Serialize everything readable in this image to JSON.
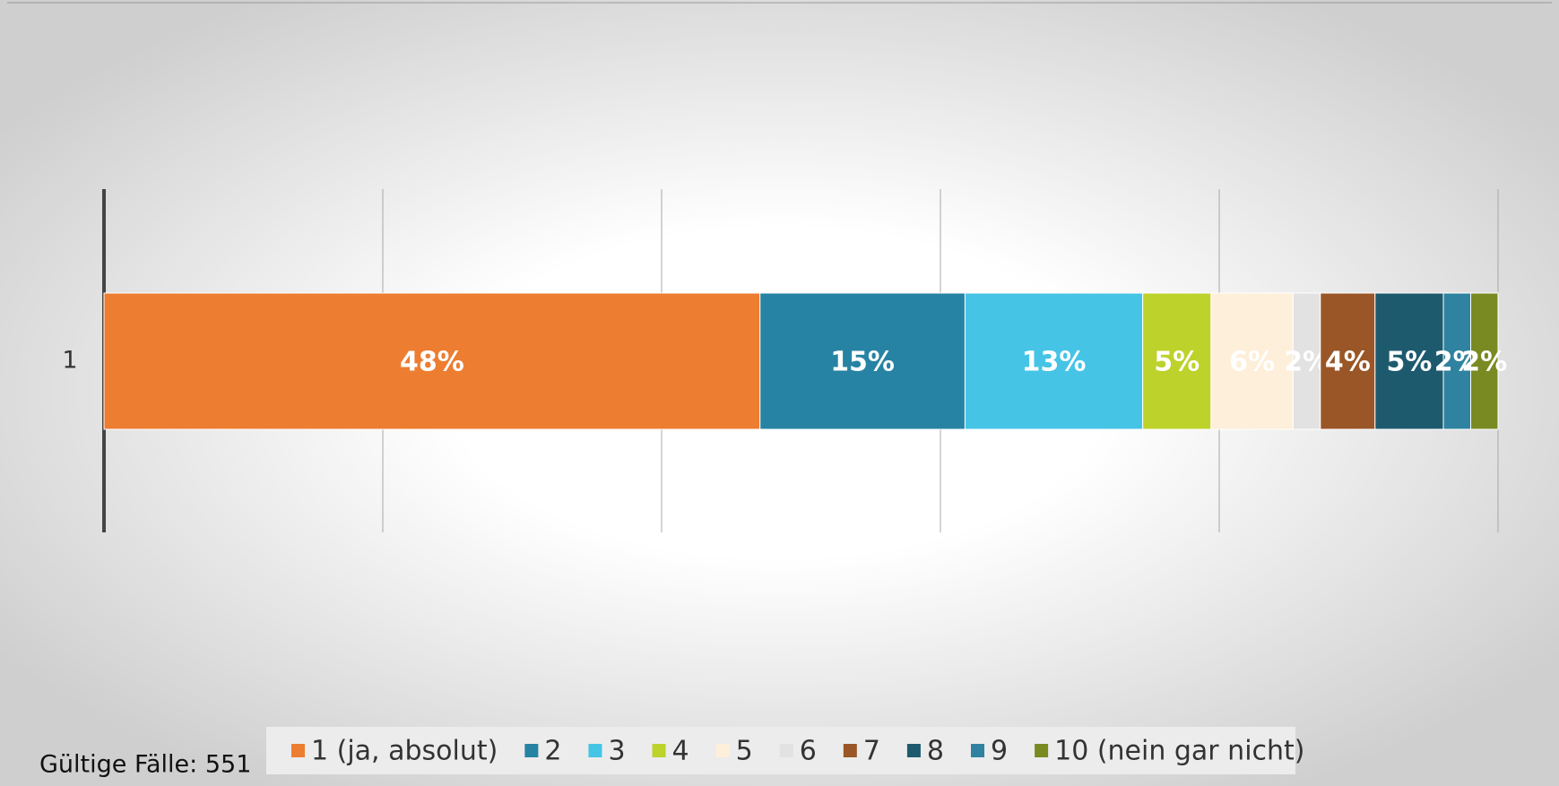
{
  "chart_data": {
    "type": "bar",
    "categories": [
      "1"
    ],
    "series": [
      {
        "name": "1 (ja, absolut)",
        "color": "#ed7d31",
        "values": [
          48
        ]
      },
      {
        "name": "2",
        "color": "#2683a3",
        "values": [
          15
        ]
      },
      {
        "name": "3",
        "color": "#45c4e6",
        "values": [
          13
        ]
      },
      {
        "name": "4",
        "color": "#bdd22a",
        "values": [
          5
        ]
      },
      {
        "name": "5",
        "color": "#fdefd9",
        "values": [
          6
        ]
      },
      {
        "name": "6",
        "color": "#e2e2e2",
        "values": [
          2
        ]
      },
      {
        "name": "7",
        "color": "#9a5627",
        "values": [
          4
        ]
      },
      {
        "name": "8",
        "color": "#1e5a6e",
        "values": [
          5
        ]
      },
      {
        "name": "9",
        "color": "#2f83a0",
        "values": [
          2
        ]
      },
      {
        "name": "10 (nein gar nicht)",
        "color": "#7a8a22",
        "values": [
          2
        ]
      }
    ],
    "value_labels": [
      "48%",
      "15%",
      "13%",
      "5%",
      "6%",
      "2%",
      "4%",
      "5%",
      "2%",
      "2%"
    ],
    "stacked_percent": true,
    "xlim": [
      0,
      100
    ],
    "xticks": [
      0,
      20,
      40,
      60,
      80,
      100
    ],
    "grid": true,
    "annotation": "Gültige Fälle: 551"
  }
}
